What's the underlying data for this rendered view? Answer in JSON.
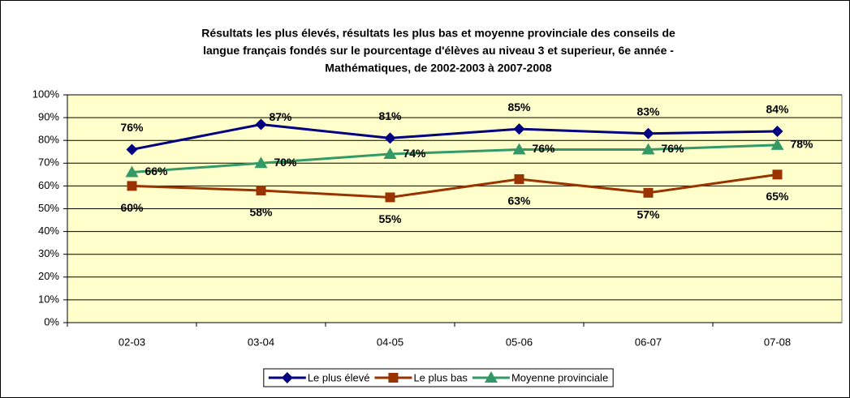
{
  "chart_data": {
    "type": "line",
    "title": [
      "Résultats les plus élevés, résultats les plus bas et moyenne provinciale des conseils de",
      "langue français fondés sur le pourcentage d'élèves au niveau 3 et superieur, 6e année -",
      "Mathématiques, de 2002-2003 à 2007-2008"
    ],
    "categories": [
      "02-03",
      "03-04",
      "04-05",
      "05-06",
      "06-07",
      "07-08"
    ],
    "series": [
      {
        "name": "Le plus élevé",
        "color": "#000080",
        "marker": "diamond",
        "values": [
          76,
          87,
          81,
          85,
          83,
          84
        ],
        "value_labels": [
          "76%",
          "87%",
          "81%",
          "85%",
          "83%",
          "84%"
        ]
      },
      {
        "name": "Le plus bas",
        "color": "#993300",
        "marker": "square",
        "values": [
          60,
          58,
          55,
          63,
          57,
          65
        ],
        "value_labels": [
          "60%",
          "58%",
          "55%",
          "63%",
          "57%",
          "65%"
        ]
      },
      {
        "name": "Moyenne provinciale",
        "color": "#339966",
        "marker": "triangle",
        "values": [
          66,
          70,
          74,
          76,
          76,
          78
        ],
        "value_labels": [
          "66%",
          "70%",
          "74%",
          "76%",
          "76%",
          "78%"
        ]
      }
    ],
    "ylim": [
      0,
      100
    ],
    "yticks": [
      {
        "value": 0,
        "label": "0%"
      },
      {
        "value": 10,
        "label": "10%"
      },
      {
        "value": 20,
        "label": "20%"
      },
      {
        "value": 30,
        "label": "30%"
      },
      {
        "value": 40,
        "label": "40%"
      },
      {
        "value": 50,
        "label": "50%"
      },
      {
        "value": 60,
        "label": "60%"
      },
      {
        "value": 70,
        "label": "70%"
      },
      {
        "value": 80,
        "label": "80%"
      },
      {
        "value": 90,
        "label": "90%"
      },
      {
        "value": 100,
        "label": "100%"
      }
    ],
    "grid": true,
    "plot_background": "#FFFFCC",
    "legend": "bottom"
  }
}
